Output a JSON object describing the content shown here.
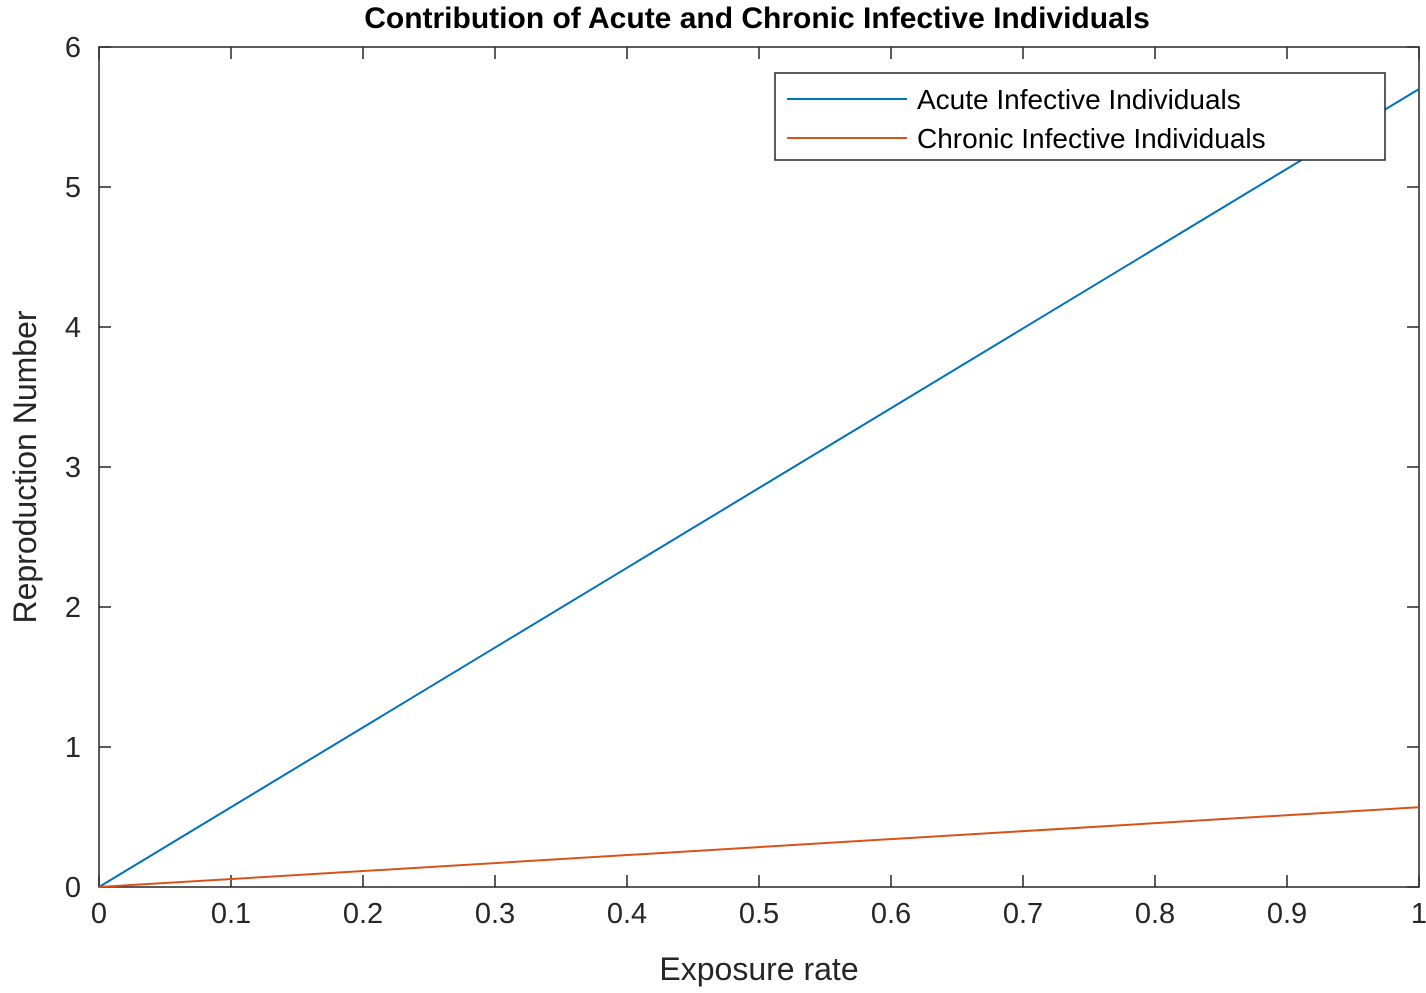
{
  "chart_data": {
    "type": "line",
    "title": "Contribution of Acute and Chronic Infective Individuals",
    "xlabel": "Exposure rate",
    "ylabel": "Reproduction Number",
    "xlim": [
      0,
      1
    ],
    "ylim": [
      0,
      6
    ],
    "xticks": [
      "0",
      "0.1",
      "0.2",
      "0.3",
      "0.4",
      "0.5",
      "0.6",
      "0.7",
      "0.8",
      "0.9",
      "1"
    ],
    "yticks": [
      "0",
      "1",
      "2",
      "3",
      "4",
      "5",
      "6"
    ],
    "grid": false,
    "legend_position": "top-right",
    "series": [
      {
        "name": "Acute Infective Individuals",
        "color": "#0072BD",
        "x": [
          0,
          1
        ],
        "y": [
          0,
          5.7
        ]
      },
      {
        "name": "Chronic Infective Individuals",
        "color": "#D95319",
        "x": [
          0,
          1
        ],
        "y": [
          0,
          0.57
        ]
      }
    ]
  }
}
